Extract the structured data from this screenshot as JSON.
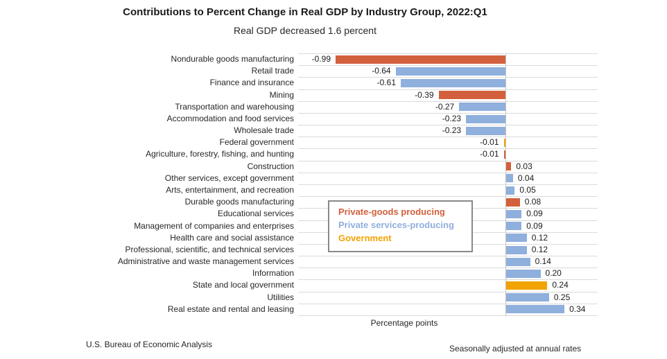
{
  "page": {
    "title": "Contributions to Percent Change in Real GDP by Industry Group, 2022:Q1",
    "subtitle": "Real GDP decreased 1.6 percent",
    "xlabel": "Percentage points",
    "footer_left": "U.S. Bureau of Economic Analysis",
    "footer_right": "Seasonally adjusted at annual rates"
  },
  "legend": {
    "items": [
      {
        "key": "goods",
        "label": "Private-goods producing",
        "color": "#d2603c"
      },
      {
        "key": "services",
        "label": "Private services-producing",
        "color": "#8fafdd"
      },
      {
        "key": "government",
        "label": "Government",
        "color": "#f0a302"
      }
    ]
  },
  "chart_data": {
    "type": "bar",
    "orientation": "horizontal",
    "title": "Contributions to Percent Change in Real GDP by Industry Group, 2022:Q1",
    "subtitle": "Real GDP decreased 1.6 percent",
    "xlabel": "Percentage points",
    "xlim": [
      -1.21,
      0.54
    ],
    "grid": "horizontal row separator lines, vertical zero line",
    "legend_position": "inside plot, boxed",
    "categories": [
      "Nondurable goods manufacturing",
      "Retail trade",
      "Finance and insurance",
      "Mining",
      "Transportation and warehousing",
      "Accommodation and food services",
      "Wholesale trade",
      "Federal government",
      "Agriculture, forestry, fishing, and hunting",
      "Construction",
      "Other services, except government",
      "Arts, entertainment, and recreation",
      "Durable goods manufacturing",
      "Educational services",
      "Management of companies and enterprises",
      "Health care and social assistance",
      "Professional, scientific, and technical services",
      "Administrative and waste management services",
      "Information",
      "State and local government",
      "Utilities",
      "Real estate and rental and leasing"
    ],
    "values": [
      -0.99,
      -0.64,
      -0.61,
      -0.39,
      -0.27,
      -0.23,
      -0.23,
      -0.01,
      -0.01,
      0.03,
      0.04,
      0.05,
      0.08,
      0.09,
      0.09,
      0.12,
      0.12,
      0.14,
      0.2,
      0.24,
      0.25,
      0.34
    ],
    "value_labels": [
      "-0.99",
      "-0.64",
      "-0.61",
      "-0.39",
      "-0.27",
      "-0.23",
      "-0.23",
      "-0.01",
      "-0.01",
      "0.03",
      "0.04",
      "0.05",
      "0.08",
      "0.09",
      "0.09",
      "0.12",
      "0.12",
      "0.14",
      "0.20",
      "0.24",
      "0.25",
      "0.34"
    ],
    "groups": [
      "goods",
      "services",
      "services",
      "goods",
      "services",
      "services",
      "services",
      "government",
      "goods",
      "goods",
      "services",
      "services",
      "goods",
      "services",
      "services",
      "services",
      "services",
      "services",
      "services",
      "government",
      "services",
      "services"
    ]
  }
}
